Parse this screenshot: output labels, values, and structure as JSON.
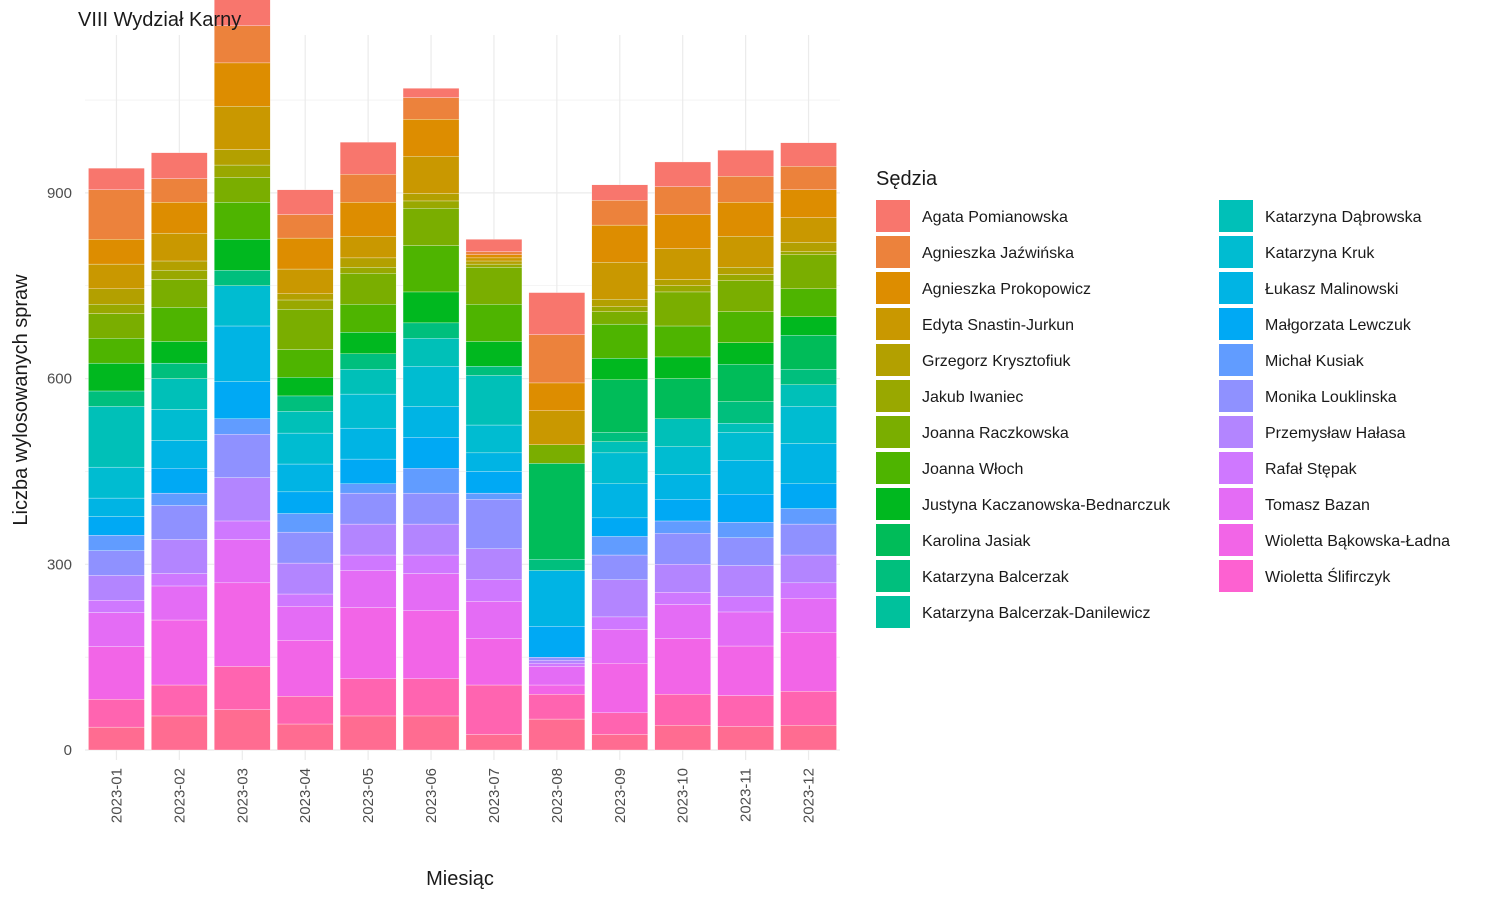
{
  "chart_data": {
    "type": "bar",
    "stacked": true,
    "title": "VIII Wydział Karny",
    "xlabel": "Miesiąc",
    "ylabel": "Liczba wylosowanych spraw",
    "ylim": [
      0,
      1140
    ],
    "y_ticks": [
      0,
      300,
      600,
      900
    ],
    "grid": true,
    "legend_title": "Sędzia",
    "legend_position": "right",
    "categories": [
      "2023-01",
      "2023-02",
      "2023-03",
      "2023-04",
      "2023-05",
      "2023-06",
      "2023-07",
      "2023-08",
      "2023-09",
      "2023-10",
      "2023-11",
      "2023-12"
    ],
    "series": [
      {
        "name": "Agata Pomianowska",
        "color": "#F8766D",
        "values": [
          35,
          42,
          62,
          40,
          52,
          15,
          20,
          68,
          25,
          40,
          42,
          38
        ]
      },
      {
        "name": "Agnieszka Jaźwińska",
        "color": "#EC823C",
        "values": [
          80,
          38,
          60,
          38,
          45,
          35,
          5,
          78,
          40,
          45,
          42,
          38
        ]
      },
      {
        "name": "Agnieszka Prokopowicz",
        "color": "#DD8D00",
        "values": [
          40,
          50,
          70,
          50,
          55,
          60,
          5,
          45,
          60,
          55,
          55,
          45
        ]
      },
      {
        "name": "Edyta Snastin-Jurkun",
        "color": "#C99800",
        "values": [
          40,
          45,
          70,
          40,
          35,
          60,
          5,
          55,
          60,
          50,
          50,
          40
        ]
      },
      {
        "name": "Grzegorz Krysztofiuk",
        "color": "#B3A000",
        "values": [
          25,
          15,
          25,
          10,
          15,
          12,
          5,
          0,
          12,
          10,
          12,
          15
        ]
      },
      {
        "name": "Jakub Iwaniec",
        "color": "#99A800",
        "values": [
          15,
          15,
          20,
          15,
          10,
          12,
          5,
          0,
          8,
          10,
          10,
          5
        ]
      },
      {
        "name": "Joanna Raczkowska",
        "color": "#7AAE00",
        "values": [
          40,
          45,
          40,
          65,
          50,
          60,
          60,
          30,
          20,
          55,
          50,
          55
        ]
      },
      {
        "name": "Joanna Włoch",
        "color": "#4EB400",
        "values": [
          40,
          55,
          60,
          45,
          45,
          75,
          60,
          0,
          55,
          50,
          50,
          45
        ]
      },
      {
        "name": "Justyna Kaczanowska-Bednarczuk",
        "color": "#00B81F",
        "values": [
          45,
          35,
          50,
          30,
          35,
          50,
          40,
          0,
          35,
          35,
          35,
          30
        ]
      },
      {
        "name": "Karolina Jasiak",
        "color": "#00BC59",
        "values": [
          0,
          0,
          0,
          0,
          0,
          0,
          0,
          155,
          85,
          65,
          60,
          55
        ]
      },
      {
        "name": "Katarzyna Balcerzak",
        "color": "#00BF7D",
        "values": [
          25,
          25,
          25,
          25,
          25,
          25,
          15,
          18,
          15,
          0,
          35,
          25
        ]
      },
      {
        "name": "Katarzyna Balcerzak-Danilewicz",
        "color": "#00C19C",
        "values": [
          0,
          0,
          0,
          0,
          0,
          0,
          0,
          0,
          0,
          0,
          0,
          0
        ]
      },
      {
        "name": "Katarzyna Dąbrowska",
        "color": "#00C0B8",
        "values": [
          98,
          50,
          0,
          35,
          40,
          45,
          80,
          0,
          18,
          45,
          15,
          35
        ]
      },
      {
        "name": "Katarzyna Kruk",
        "color": "#00BCD1",
        "values": [
          50,
          50,
          65,
          50,
          55,
          65,
          45,
          0,
          50,
          45,
          45,
          60
        ]
      },
      {
        "name": "Łukasz Malinowski",
        "color": "#00B4E4",
        "values": [
          30,
          45,
          90,
          45,
          50,
          50,
          30,
          90,
          55,
          40,
          55,
          65
        ]
      },
      {
        "name": "Małgorzata Lewczuk",
        "color": "#00A9F4",
        "values": [
          30,
          40,
          60,
          35,
          40,
          50,
          35,
          50,
          30,
          35,
          45,
          40
        ]
      },
      {
        "name": "Michał Kusiak",
        "color": "#619CFF",
        "values": [
          25,
          20,
          25,
          30,
          15,
          40,
          10,
          0,
          30,
          20,
          25,
          25
        ]
      },
      {
        "name": "Monika Louklinska",
        "color": "#8F91FF",
        "values": [
          40,
          55,
          70,
          50,
          50,
          50,
          80,
          5,
          40,
          50,
          45,
          50
        ]
      },
      {
        "name": "Przemysław Hałasa",
        "color": "#B385FF",
        "values": [
          40,
          55,
          70,
          50,
          50,
          50,
          50,
          5,
          60,
          45,
          50,
          45
        ]
      },
      {
        "name": "Rafał Stępak",
        "color": "#CF78FF",
        "values": [
          20,
          20,
          30,
          20,
          25,
          30,
          35,
          5,
          20,
          20,
          25,
          25
        ]
      },
      {
        "name": "Tomasz Bazan",
        "color": "#E46CF5",
        "values": [
          55,
          55,
          70,
          55,
          60,
          60,
          60,
          30,
          55,
          55,
          55,
          55
        ]
      },
      {
        "name": "Wioletta Bąkowska-Ładna",
        "color": "#F265E7",
        "values": [
          85,
          105,
          135,
          90,
          115,
          110,
          75,
          15,
          80,
          90,
          80,
          95
        ]
      },
      {
        "name": "Wioletta Ślifirczyk",
        "color": "#FD61D1",
        "values": [
          0,
          0,
          0,
          0,
          0,
          0,
          0,
          0,
          0,
          0,
          0,
          0
        ]
      },
      {
        "name": "",
        "color": "#FF64B0",
        "values": [
          45,
          50,
          70,
          45,
          60,
          60,
          80,
          40,
          35,
          50,
          50,
          55
        ]
      },
      {
        "name": "",
        "color": "#FF6C91",
        "values": [
          37,
          55,
          65,
          42,
          55,
          55,
          25,
          50,
          25,
          40,
          38,
          40
        ]
      }
    ]
  }
}
